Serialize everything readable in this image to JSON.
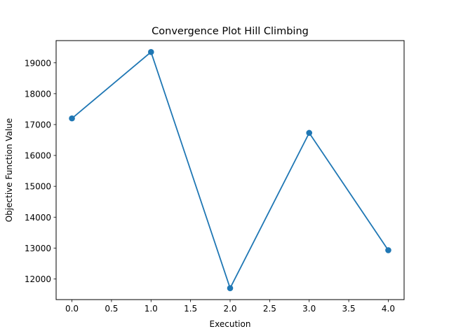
{
  "chart_data": {
    "type": "line",
    "title": "Convergence Plot Hill Climbing",
    "xlabel": "Execution",
    "ylabel": "Objective Function Value",
    "x": [
      0,
      1,
      2,
      3,
      4
    ],
    "series": [
      {
        "values": [
          17200,
          19350,
          11700,
          16730,
          12930
        ],
        "color": "#1f77b4"
      }
    ],
    "xlim": [
      -0.2,
      4.2
    ],
    "ylim": [
      11330,
      19720
    ],
    "xticks": [
      0.0,
      0.5,
      1.0,
      1.5,
      2.0,
      2.5,
      3.0,
      3.5,
      4.0
    ],
    "xtick_labels": [
      "0.0",
      "0.5",
      "1.0",
      "1.5",
      "2.0",
      "2.5",
      "3.0",
      "3.5",
      "4.0"
    ],
    "yticks": [
      12000,
      13000,
      14000,
      15000,
      16000,
      17000,
      18000,
      19000
    ],
    "ytick_labels": [
      "12000",
      "13000",
      "14000",
      "15000",
      "16000",
      "17000",
      "18000",
      "19000"
    ],
    "grid": false,
    "markers": "circle"
  }
}
